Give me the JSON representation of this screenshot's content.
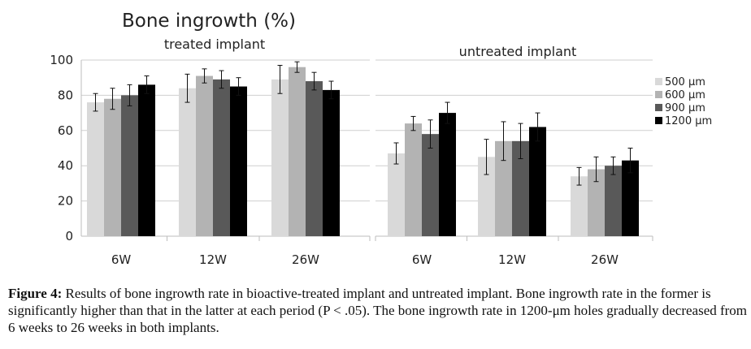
{
  "chart_data": [
    {
      "type": "bar",
      "title": "Bone ingrowth (%)",
      "subtitle": "treated implant",
      "categories": [
        "6W",
        "12W",
        "26W"
      ],
      "ylim": [
        0,
        100
      ],
      "yticks": [
        "0",
        "20",
        "40",
        "60",
        "80",
        "100"
      ],
      "grid": true,
      "series": [
        {
          "name": "500 μm",
          "values": [
            76,
            84,
            89
          ],
          "errors": [
            5,
            8,
            8
          ],
          "color": "#d9d9d9"
        },
        {
          "name": "600 μm",
          "values": [
            78,
            91,
            96
          ],
          "errors": [
            6,
            4,
            3
          ],
          "color": "#b3b3b3"
        },
        {
          "name": "900 μm",
          "values": [
            80,
            89,
            88
          ],
          "errors": [
            6,
            5,
            5
          ],
          "color": "#595959"
        },
        {
          "name": "1200 μm",
          "values": [
            86,
            85,
            83
          ],
          "errors": [
            5,
            5,
            5
          ],
          "color": "#000000"
        }
      ]
    },
    {
      "type": "bar",
      "subtitle": "untreated implant",
      "categories": [
        "6W",
        "12W",
        "26W"
      ],
      "ylim": [
        0,
        100
      ],
      "grid": true,
      "legend": "right",
      "series": [
        {
          "name": "500 μm",
          "values": [
            47,
            45,
            34
          ],
          "errors": [
            6,
            10,
            5
          ],
          "color": "#d9d9d9"
        },
        {
          "name": "600 μm",
          "values": [
            64,
            54,
            38
          ],
          "errors": [
            4,
            11,
            7
          ],
          "color": "#b3b3b3"
        },
        {
          "name": "900 μm",
          "values": [
            58,
            54,
            40
          ],
          "errors": [
            8,
            10,
            5
          ],
          "color": "#595959"
        },
        {
          "name": "1200 μm",
          "values": [
            70,
            62,
            43
          ],
          "errors": [
            6,
            8,
            7
          ],
          "color": "#000000"
        }
      ]
    }
  ],
  "caption": {
    "label": "Figure 4:",
    "text": " Results of bone ingrowth rate in bioactive-treated implant and untreated implant. Bone ingrowth rate in the former is significantly higher than that in the latter at each period (P < .05). The bone ingrowth rate in 1200-μm holes gradually decreased from 6 weeks to 26 weeks in both implants."
  }
}
